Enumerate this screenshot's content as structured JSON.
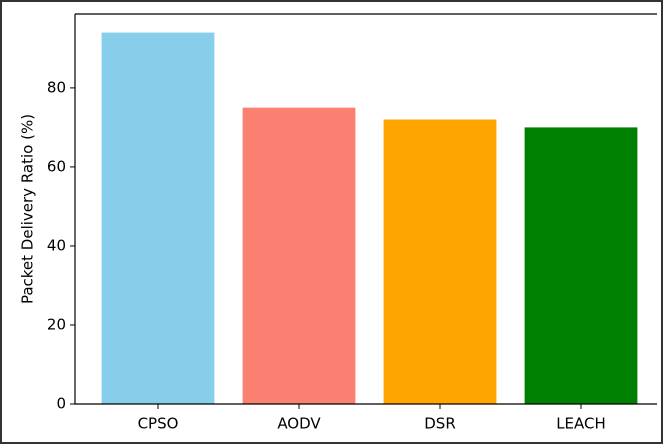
{
  "chart_data": {
    "type": "bar",
    "y_label": "Packet Delivery Ratio (%)",
    "categories": [
      "CPSO",
      "AODV",
      "DSR",
      "LEACH"
    ],
    "values": [
      94,
      75,
      72,
      70
    ],
    "colors": [
      "#87ceeb",
      "#fa8072",
      "#ffa500",
      "#008000"
    ],
    "ylim": [
      0,
      98.7
    ],
    "yticks": [
      0,
      20,
      40,
      60,
      80
    ]
  }
}
